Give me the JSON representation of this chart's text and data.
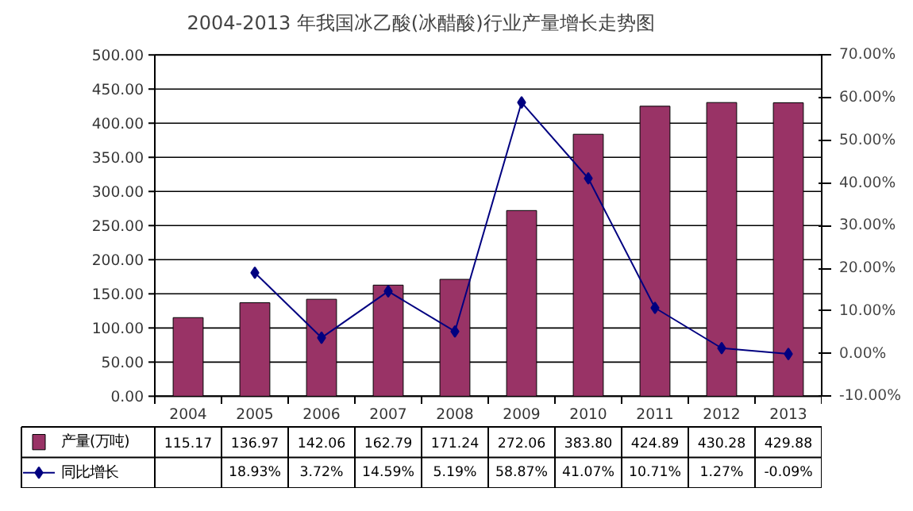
{
  "chart_data": {
    "type": "bar",
    "title": "2004-2013 年我国冰乙酸(冰醋酸)行业产量增长走势图",
    "categories": [
      "2004",
      "2005",
      "2006",
      "2007",
      "2008",
      "2009",
      "2010",
      "2011",
      "2012",
      "2013"
    ],
    "series": [
      {
        "name": "产量(万吨)",
        "color": "#993366",
        "values": [
          115.17,
          136.97,
          142.06,
          162.79,
          171.24,
          272.06,
          383.8,
          424.89,
          430.28,
          429.88
        ],
        "value_labels": [
          "115.17",
          "136.97",
          "142.06",
          "162.79",
          "171.24",
          "272.06",
          "383.80",
          "424.89",
          "430.28",
          "429.88"
        ]
      },
      {
        "name": "同比增长",
        "type": "line",
        "axis": "y2",
        "color": "#000080",
        "marker": "diamond",
        "values": [
          null,
          18.93,
          3.72,
          14.59,
          5.19,
          58.87,
          41.07,
          10.71,
          1.27,
          -0.09
        ],
        "value_labels": [
          null,
          "18.93%",
          "3.72%",
          "14.59%",
          "5.19%",
          "58.87%",
          "41.07%",
          "10.71%",
          "1.27%",
          "-0.09%"
        ]
      }
    ],
    "ylim": [
      0,
      500
    ],
    "yticks": [
      {
        "value": 0,
        "label": "0.00"
      },
      {
        "value": 50,
        "label": "50.00"
      },
      {
        "value": 100,
        "label": "100.00"
      },
      {
        "value": 150,
        "label": "150.00"
      },
      {
        "value": 200,
        "label": "200.00"
      },
      {
        "value": 250,
        "label": "250.00"
      },
      {
        "value": 300,
        "label": "300.00"
      },
      {
        "value": 350,
        "label": "350.00"
      },
      {
        "value": 400,
        "label": "400.00"
      },
      {
        "value": 450,
        "label": "450.00"
      },
      {
        "value": 500,
        "label": "500.00"
      }
    ],
    "y2lim": [
      -10,
      70
    ],
    "y2ticks": [
      {
        "value": -10,
        "label": "-10.00%"
      },
      {
        "value": 0,
        "label": "0.00%"
      },
      {
        "value": 10,
        "label": "10.00%"
      },
      {
        "value": 20,
        "label": "20.00%"
      },
      {
        "value": 30,
        "label": "30.00%"
      },
      {
        "value": 40,
        "label": "40.00%"
      },
      {
        "value": 50,
        "label": "50.00%"
      },
      {
        "value": 60,
        "label": "60.00%"
      },
      {
        "value": 70,
        "label": "70.00%"
      }
    ],
    "grid": "y",
    "legend": "bottom"
  }
}
